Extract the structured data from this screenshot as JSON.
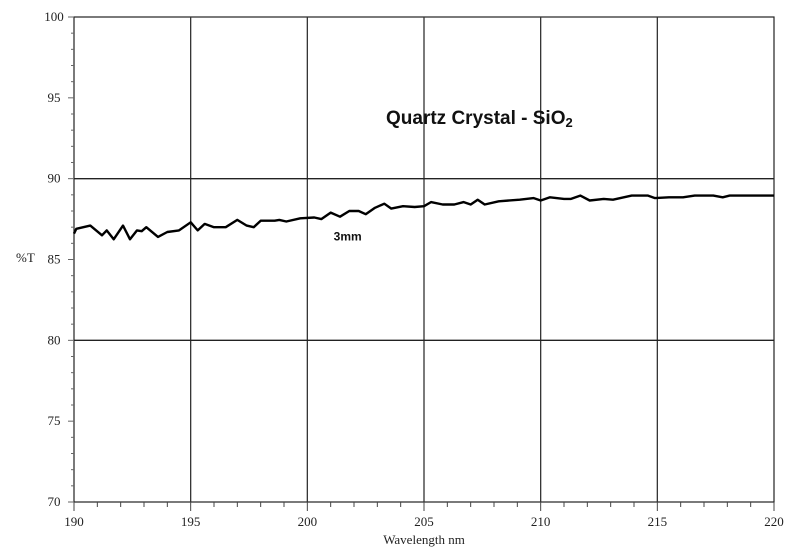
{
  "chart_data": {
    "type": "line",
    "title": "Quartz Crystal - SiO",
    "title_subscript": "2",
    "xlabel": "Wavelength nm",
    "ylabel": "%T",
    "xlim": [
      190,
      220
    ],
    "ylim": [
      70,
      100
    ],
    "x_ticks": [
      190,
      195,
      200,
      205,
      210,
      215,
      220
    ],
    "y_ticks": [
      70,
      75,
      80,
      85,
      90,
      95,
      100
    ],
    "grid": {
      "vertical": [
        195,
        200,
        205,
        210,
        215
      ],
      "horizontal": [
        80,
        90
      ]
    },
    "line_color": "#000000",
    "series": [
      {
        "name": "3mm",
        "x": [
          190,
          190.1,
          190.7,
          191.2,
          191.4,
          191.7,
          192.1,
          192.4,
          192.7,
          192.9,
          193.1,
          193.6,
          194.0,
          194.5,
          195.0,
          195.3,
          195.6,
          196.0,
          196.5,
          197.0,
          197.4,
          197.7,
          198.0,
          198.6,
          198.8,
          199.1,
          199.7,
          200.3,
          200.6,
          201.0,
          201.4,
          201.8,
          202.2,
          202.5,
          202.9,
          203.3,
          203.6,
          204.1,
          204.6,
          205.0,
          205.3,
          205.8,
          206.3,
          206.7,
          207.0,
          207.3,
          207.6,
          208.2,
          209.1,
          209.7,
          210.0,
          210.4,
          211.0,
          211.3,
          211.7,
          212.1,
          212.7,
          213.1,
          213.9,
          214.6,
          214.9,
          215.5,
          216.1,
          216.6,
          217.4,
          217.8,
          218.1,
          220
        ],
        "y": [
          86.6,
          86.9,
          87.1,
          86.5,
          86.8,
          86.25,
          87.1,
          86.25,
          86.8,
          86.75,
          87.0,
          86.4,
          86.7,
          86.8,
          87.3,
          86.8,
          87.2,
          87.0,
          87.0,
          87.45,
          87.1,
          87.0,
          87.4,
          87.4,
          87.45,
          87.35,
          87.55,
          87.6,
          87.5,
          87.9,
          87.65,
          88.0,
          88.0,
          87.8,
          88.2,
          88.45,
          88.15,
          88.3,
          88.25,
          88.3,
          88.55,
          88.4,
          88.4,
          88.55,
          88.4,
          88.7,
          88.4,
          88.6,
          88.7,
          88.8,
          88.65,
          88.85,
          88.75,
          88.75,
          88.95,
          88.65,
          88.75,
          88.7,
          88.95,
          88.95,
          88.8,
          88.85,
          88.85,
          88.95,
          88.95,
          88.85,
          88.95,
          88.95
        ]
      }
    ],
    "annotations": [
      {
        "text": "3mm",
        "x": 201.9,
        "y": 86.5
      }
    ]
  }
}
